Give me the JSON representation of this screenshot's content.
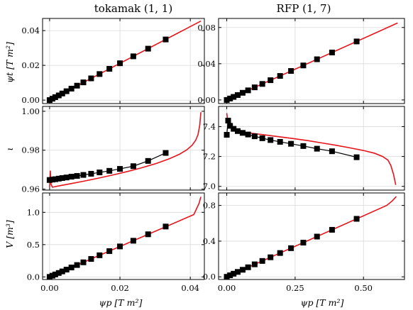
{
  "chart_data": [
    {
      "id": "tok_psit",
      "type": "line",
      "title": "tokamak (1, 1)",
      "ylabel": "ψt  [T m²]",
      "xlim": [
        -0.002,
        0.044
      ],
      "ylim": [
        -0.002,
        0.047
      ],
      "xticks": [
        0.0,
        0.02,
        0.04
      ],
      "xtick_labels": [
        "",
        "",
        ""
      ],
      "yticks": [
        0.0,
        0.02,
        0.04
      ],
      "ytick_labels": [
        "0.00",
        "0.02",
        "0.04"
      ],
      "grid": true,
      "series": [
        {
          "style": "red-line",
          "x": [
            0.0,
            0.043
          ],
          "y": [
            0.0,
            0.0455
          ]
        },
        {
          "style": "black-squares",
          "x": [
            0.0,
            0.0008,
            0.0016,
            0.0026,
            0.0036,
            0.0048,
            0.0062,
            0.0078,
            0.0096,
            0.0118,
            0.0142,
            0.017,
            0.02,
            0.0238,
            0.028,
            0.033
          ],
          "y": [
            0.0,
            0.0008,
            0.0017,
            0.0027,
            0.0038,
            0.0051,
            0.0066,
            0.0083,
            0.0102,
            0.0125,
            0.015,
            0.018,
            0.0212,
            0.0252,
            0.0296,
            0.0349
          ]
        }
      ]
    },
    {
      "id": "rfp_psit",
      "type": "line",
      "title": "RFP (1, 7)",
      "ylabel": "",
      "xlim": [
        -0.03,
        0.65
      ],
      "ylim": [
        -0.004,
        0.09
      ],
      "xticks": [
        0.0,
        0.25,
        0.5
      ],
      "xtick_labels": [
        "",
        "",
        ""
      ],
      "yticks": [
        0.0,
        0.04,
        0.08
      ],
      "ytick_labels": [
        "0.00",
        "0.04",
        "0.08"
      ],
      "grid": true,
      "series": [
        {
          "style": "red-line",
          "x": [
            0.0,
            0.625
          ],
          "y": [
            0.0,
            0.085
          ]
        },
        {
          "style": "black-squares",
          "x": [
            0.0,
            0.012,
            0.025,
            0.04,
            0.058,
            0.078,
            0.102,
            0.13,
            0.16,
            0.195,
            0.235,
            0.28,
            0.33,
            0.385,
            0.475
          ],
          "y": [
            0.0,
            0.0016,
            0.0034,
            0.0054,
            0.0079,
            0.0106,
            0.0139,
            0.0177,
            0.0218,
            0.0265,
            0.032,
            0.0381,
            0.0449,
            0.0524,
            0.0646
          ]
        }
      ]
    },
    {
      "id": "tok_iota",
      "type": "line",
      "title": "",
      "ylabel": "ι",
      "xlim": [
        -0.002,
        0.044
      ],
      "ylim": [
        0.9595,
        1.0025
      ],
      "xticks": [
        0.0,
        0.02,
        0.04
      ],
      "xtick_labels": [
        "",
        "",
        ""
      ],
      "yticks": [
        0.96,
        0.98,
        1.0
      ],
      "ytick_labels": [
        "0.96",
        "0.98",
        "1.00"
      ],
      "grid": true,
      "series": [
        {
          "style": "red-line",
          "x": [
            0.0,
            0.0002,
            0.0004,
            0.0008,
            0.003,
            0.006,
            0.01,
            0.014,
            0.018,
            0.022,
            0.026,
            0.03,
            0.034,
            0.037,
            0.039,
            0.0405,
            0.0415,
            0.0422,
            0.0427,
            0.043
          ],
          "y": [
            0.961,
            0.9695,
            0.9625,
            0.961,
            0.9618,
            0.9628,
            0.9642,
            0.9657,
            0.9673,
            0.969,
            0.9709,
            0.973,
            0.9756,
            0.978,
            0.9802,
            0.9825,
            0.985,
            0.988,
            0.993,
            0.9995
          ]
        },
        {
          "style": "black-squares-line",
          "x": [
            0.0,
            0.0008,
            0.0016,
            0.0026,
            0.0036,
            0.0048,
            0.0062,
            0.0078,
            0.0096,
            0.0118,
            0.0142,
            0.017,
            0.02,
            0.0238,
            0.028,
            0.033
          ],
          "y": [
            0.9647,
            0.9649,
            0.9651,
            0.9654,
            0.9657,
            0.966,
            0.9664,
            0.9668,
            0.9673,
            0.9679,
            0.9686,
            0.9694,
            0.9704,
            0.9718,
            0.9745,
            0.9786
          ]
        }
      ]
    },
    {
      "id": "rfp_iota",
      "type": "line",
      "title": "",
      "ylabel": "",
      "xlim": [
        -0.03,
        0.65
      ],
      "ylim": [
        6.975,
        7.535
      ],
      "xticks": [
        0.0,
        0.25,
        0.5
      ],
      "xtick_labels": [
        "",
        "",
        ""
      ],
      "yticks": [
        7.0,
        7.2,
        7.4
      ],
      "ytick_labels": [
        "7.0",
        "7.2",
        "7.4"
      ],
      "grid": true,
      "series": [
        {
          "style": "red-line",
          "x": [
            0.0,
            0.002,
            0.005,
            0.01,
            0.02,
            0.04,
            0.07,
            0.1,
            0.15,
            0.2,
            0.25,
            0.3,
            0.35,
            0.4,
            0.45,
            0.5,
            0.54,
            0.57,
            0.59,
            0.6,
            0.61,
            0.618
          ],
          "y": [
            7.49,
            7.46,
            7.43,
            7.405,
            7.385,
            7.37,
            7.36,
            7.353,
            7.342,
            7.33,
            7.318,
            7.305,
            7.29,
            7.275,
            7.258,
            7.24,
            7.222,
            7.2,
            7.175,
            7.14,
            7.08,
            7.01
          ]
        },
        {
          "style": "black-squares-line",
          "x": [
            0.0,
            0.005,
            0.012,
            0.025,
            0.04,
            0.058,
            0.078,
            0.102,
            0.13,
            0.16,
            0.195,
            0.235,
            0.28,
            0.33,
            0.385,
            0.475
          ],
          "y": [
            7.345,
            7.44,
            7.405,
            7.385,
            7.37,
            7.358,
            7.347,
            7.335,
            7.322,
            7.31,
            7.298,
            7.285,
            7.27,
            7.252,
            7.235,
            7.195
          ]
        }
      ]
    },
    {
      "id": "tok_V",
      "type": "line",
      "title": "",
      "ylabel": "V  [m³]",
      "xlabel": "ψp  [T m²]",
      "xlim": [
        -0.002,
        0.044
      ],
      "ylim": [
        -0.04,
        1.3
      ],
      "xticks": [
        0.0,
        0.02,
        0.04
      ],
      "xtick_labels": [
        "0.00",
        "0.02",
        "0.04"
      ],
      "yticks": [
        0.0,
        0.5,
        1.0
      ],
      "ytick_labels": [
        "0.0",
        "0.5",
        "1.0"
      ],
      "grid": true,
      "series": [
        {
          "style": "red-line",
          "x": [
            0.0,
            0.041,
            0.0425,
            0.043
          ],
          "y": [
            0.0,
            0.965,
            1.14,
            1.24
          ]
        },
        {
          "style": "black-squares",
          "x": [
            0.0,
            0.0008,
            0.0016,
            0.0026,
            0.0036,
            0.0048,
            0.0062,
            0.0078,
            0.0096,
            0.0118,
            0.0142,
            0.017,
            0.02,
            0.0238,
            0.028,
            0.033
          ],
          "y": [
            0.0,
            0.019,
            0.038,
            0.061,
            0.085,
            0.113,
            0.146,
            0.184,
            0.226,
            0.278,
            0.335,
            0.4,
            0.472,
            0.56,
            0.66,
            0.78
          ]
        }
      ]
    },
    {
      "id": "rfp_V",
      "type": "line",
      "title": "",
      "ylabel": "",
      "xlabel": "ψp  [T m²]",
      "xlim": [
        -0.03,
        0.65
      ],
      "ylim": [
        -0.03,
        0.94
      ],
      "xticks": [
        0.0,
        0.25,
        0.5
      ],
      "xtick_labels": [
        "0.00",
        "0.25",
        "0.50"
      ],
      "yticks": [
        0.0,
        0.4,
        0.8
      ],
      "ytick_labels": [
        "0.0",
        "0.4",
        "0.8"
      ],
      "grid": true,
      "series": [
        {
          "style": "red-line",
          "x": [
            0.0,
            0.585,
            0.605,
            0.62
          ],
          "y": [
            0.0,
            0.8,
            0.85,
            0.9
          ]
        },
        {
          "style": "black-squares",
          "x": [
            0.0,
            0.012,
            0.025,
            0.04,
            0.058,
            0.078,
            0.102,
            0.13,
            0.16,
            0.195,
            0.235,
            0.28,
            0.33,
            0.385,
            0.475
          ],
          "y": [
            0.0,
            0.017,
            0.035,
            0.055,
            0.079,
            0.107,
            0.14,
            0.178,
            0.219,
            0.267,
            0.321,
            0.383,
            0.451,
            0.527,
            0.65
          ]
        }
      ]
    }
  ]
}
